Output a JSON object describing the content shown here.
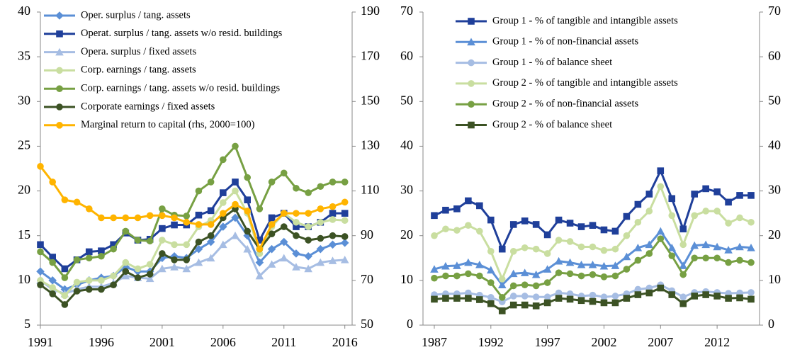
{
  "chart_data": [
    {
      "type": "line",
      "legend": "upper left",
      "x": [
        1991,
        1992,
        1993,
        1994,
        1995,
        1996,
        1997,
        1998,
        1999,
        2000,
        2001,
        2002,
        2003,
        2004,
        2005,
        2006,
        2007,
        2008,
        2009,
        2010,
        2011,
        2012,
        2013,
        2014,
        2015,
        2016
      ],
      "xlim": [
        1991,
        2016.6
      ],
      "xticks": [
        1991,
        1996,
        2001,
        2006,
        2011,
        2016
      ],
      "ylim": [
        5,
        40
      ],
      "yticks": [
        5,
        10,
        15,
        20,
        25,
        30,
        35,
        40
      ],
      "y2lim": [
        50,
        190
      ],
      "y2ticks": [
        50,
        70,
        90,
        110,
        130,
        150,
        170,
        190
      ],
      "series": [
        {
          "name": "Oper. surplus / tang. assets",
          "color": "#5b8fd6",
          "marker": "diamond",
          "values": [
            11,
            10,
            9,
            9.5,
            10,
            10.3,
            10.5,
            11.5,
            11,
            11,
            12.5,
            12.7,
            12.5,
            13.5,
            14.3,
            16,
            17,
            15,
            12,
            13.5,
            14.3,
            13,
            12.7,
            13.5,
            14,
            14.2
          ]
        },
        {
          "name": "Operat. surplus / tang. assets w/o resid. buildings",
          "color": "#1f3f9a",
          "marker": "square",
          "values": [
            14,
            12.6,
            11.3,
            12.3,
            13.2,
            13.3,
            14,
            15.3,
            14.5,
            14.6,
            15.8,
            16.2,
            16.2,
            17.3,
            17.8,
            19.8,
            21,
            19,
            14.5,
            17,
            17.5,
            16,
            16,
            16.5,
            17.5,
            17.5
          ]
        },
        {
          "name": "Opera. surplus / fixed assets",
          "color": "#a6bde3",
          "marker": "triangle",
          "values": [
            10,
            9,
            8.5,
            9,
            9.3,
            9.3,
            9.7,
            10.5,
            10.3,
            10.2,
            11.3,
            11.5,
            11.3,
            12,
            12.5,
            14,
            15,
            13.5,
            10.5,
            11.8,
            12.5,
            11.5,
            11.3,
            12,
            12.2,
            12.3
          ]
        },
        {
          "name": "Corp. earnings / tang. assets",
          "color": "#c9dea0",
          "marker": "circle",
          "values": [
            10,
            9.2,
            8.3,
            9.8,
            10,
            10,
            10.5,
            12,
            11.3,
            11.8,
            14.5,
            14,
            14,
            16,
            16.7,
            18.7,
            20,
            17.5,
            13,
            16,
            17.5,
            16.5,
            16,
            16.5,
            16.8,
            16.7
          ]
        },
        {
          "name": "Corp. earnings / tang. assets w/o resid. buildings",
          "color": "#77a043",
          "marker": "circle",
          "values": [
            13.2,
            12,
            10.3,
            12.3,
            12.5,
            12.7,
            13.5,
            15.5,
            14.5,
            14.4,
            18,
            17.3,
            17.2,
            20,
            21,
            23.5,
            25,
            21.5,
            18,
            21,
            22,
            20.3,
            19.8,
            20.5,
            21,
            21
          ]
        },
        {
          "name": "Corporate earnings / fixed assets",
          "color": "#3c5224",
          "marker": "circle",
          "values": [
            9.5,
            8.5,
            7.3,
            8.8,
            9,
            9,
            9.5,
            11,
            10.3,
            10.7,
            13,
            12.3,
            12.3,
            14.3,
            15,
            17,
            18,
            15.5,
            13.5,
            15.2,
            16,
            15,
            14.5,
            14.7,
            15,
            14.9
          ]
        },
        {
          "name": "Marginal return to capital (rhs, 2000=100)",
          "color": "#ffb400",
          "marker": "circle",
          "axis": "y2",
          "values": [
            121,
            114,
            106,
            105,
            102,
            98,
            98,
            98,
            98,
            99,
            99,
            98,
            96,
            95,
            95,
            100,
            104,
            101,
            84,
            95,
            100,
            100,
            100,
            102,
            103,
            105
          ]
        }
      ]
    },
    {
      "type": "line",
      "legend": "upper center",
      "x": [
        1987,
        1988,
        1989,
        1990,
        1991,
        1992,
        1993,
        1994,
        1995,
        1996,
        1997,
        1998,
        1999,
        2000,
        2001,
        2002,
        2003,
        2004,
        2005,
        2006,
        2007,
        2008,
        2009,
        2010,
        2011,
        2012,
        2013,
        2014,
        2015
      ],
      "xlim": [
        1986,
        2015.75
      ],
      "xticks": [
        1987,
        1992,
        1997,
        2002,
        2007,
        2012
      ],
      "ylim": [
        0,
        70
      ],
      "yticks": [
        0,
        10,
        20,
        30,
        40,
        50,
        60,
        70
      ],
      "y2lim": [
        0,
        70
      ],
      "y2ticks": [
        0,
        10,
        20,
        30,
        40,
        50,
        60,
        70
      ],
      "series": [
        {
          "name": "Group 1 - % of tangible and intangible assets",
          "color": "#1f3f9a",
          "marker": "square",
          "values": [
            24.5,
            25.7,
            26,
            27.8,
            26.7,
            23.5,
            17,
            22.5,
            23.3,
            22.5,
            20.2,
            23.5,
            22.8,
            22,
            22.3,
            21.3,
            21,
            24.3,
            27,
            29.3,
            34.5,
            28.3,
            21.5,
            29.3,
            30.5,
            29.8,
            27.5,
            29,
            29
          ]
        },
        {
          "name": "Group 1 - % of non-financial assets",
          "color": "#5b8fd6",
          "marker": "triangle",
          "values": [
            12.5,
            13.2,
            13.3,
            14,
            13.5,
            12.3,
            9,
            11.5,
            11.7,
            11.3,
            12.5,
            14.3,
            14,
            13.5,
            13.5,
            13.2,
            13.3,
            15.3,
            17.3,
            18,
            21,
            17.3,
            13.3,
            17.8,
            18,
            17.5,
            16.8,
            17.5,
            17.3
          ]
        },
        {
          "name": "Group 1 - % of balance sheet",
          "color": "#a6bde3",
          "marker": "circle",
          "values": [
            6.8,
            7,
            7,
            7.2,
            6.7,
            6.2,
            5.2,
            6.5,
            6.5,
            6.3,
            6.3,
            7.2,
            7,
            6.5,
            6.7,
            6.3,
            6.5,
            7,
            8,
            8.3,
            9,
            7.7,
            6.3,
            7.3,
            7.5,
            7.3,
            7.1,
            7.2,
            7.3
          ]
        },
        {
          "name": "Group 2 - % of tangible and intangible assets",
          "color": "#c9dea0",
          "marker": "circle",
          "values": [
            20,
            21.5,
            21.2,
            22.3,
            21,
            16.5,
            10.3,
            16.5,
            17.3,
            17,
            16,
            19,
            18.7,
            17.5,
            17.5,
            16.7,
            17,
            20,
            23,
            25.5,
            31,
            24.5,
            18,
            24.5,
            25.5,
            25.5,
            22.8,
            24,
            23
          ]
        },
        {
          "name": "Group 2 - % of non-financial assets",
          "color": "#77a043",
          "marker": "circle",
          "values": [
            10.5,
            11,
            11,
            11.5,
            11,
            9.5,
            6.2,
            8.8,
            9,
            8.8,
            9.5,
            11.7,
            11.5,
            11,
            11.3,
            10.8,
            11,
            12.5,
            14.5,
            16,
            19.3,
            15.5,
            11.3,
            15,
            15,
            15,
            14,
            14.5,
            14
          ]
        },
        {
          "name": "Group 2 - % of balance sheet",
          "color": "#3c5224",
          "marker": "square",
          "values": [
            5.8,
            6,
            6,
            6,
            5.7,
            4.8,
            3.2,
            4.5,
            4.5,
            4.3,
            5,
            6,
            5.8,
            5.5,
            5.3,
            5,
            5,
            6,
            6.8,
            7.2,
            8.3,
            6.8,
            4.8,
            6.5,
            6.8,
            6.5,
            6,
            6.1,
            5.8
          ]
        }
      ]
    }
  ]
}
